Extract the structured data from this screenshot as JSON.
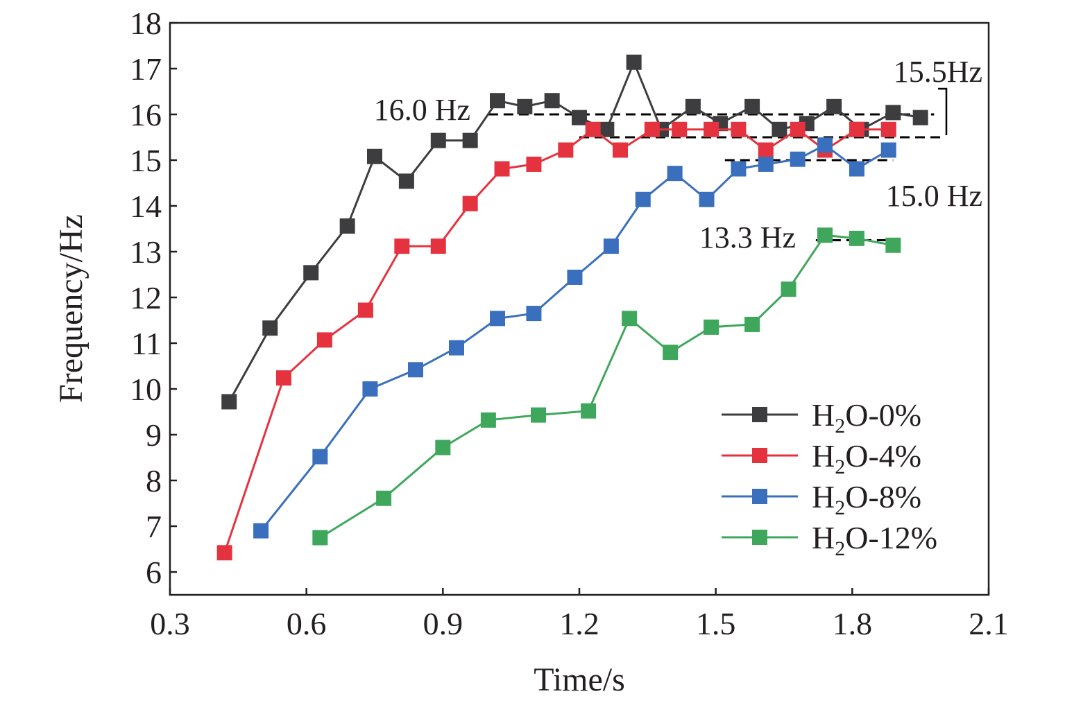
{
  "chart_data": {
    "type": "line",
    "xlabel": "Time/s",
    "ylabel": "Frequency/Hz",
    "xlim": [
      0.3,
      2.1
    ],
    "ylim": [
      5.5,
      18
    ],
    "xticks": [
      "0.3",
      "0.6",
      "0.9",
      "1.2",
      "1.5",
      "1.8",
      "2.1"
    ],
    "yticks": [
      "6",
      "7",
      "8",
      "9",
      "10",
      "11",
      "12",
      "13",
      "14",
      "15",
      "16",
      "17",
      "18"
    ],
    "legend_position": "bottom-right",
    "series": [
      {
        "name": "H2O-0%",
        "label_main": "H",
        "label_sub": "2",
        "label_rest": "O-0%",
        "color": "#3d3d3f",
        "points": [
          [
            0.43,
            9.72
          ],
          [
            0.52,
            11.33
          ],
          [
            0.61,
            12.54
          ],
          [
            0.69,
            13.56
          ],
          [
            0.75,
            15.08
          ],
          [
            0.82,
            14.54
          ],
          [
            0.89,
            15.43
          ],
          [
            0.96,
            15.43
          ],
          [
            1.02,
            16.3
          ],
          [
            1.08,
            16.17
          ],
          [
            1.14,
            16.3
          ],
          [
            1.2,
            15.93
          ],
          [
            1.26,
            15.67
          ],
          [
            1.32,
            17.14
          ],
          [
            1.38,
            15.67
          ],
          [
            1.45,
            16.17
          ],
          [
            1.51,
            15.8
          ],
          [
            1.58,
            16.17
          ],
          [
            1.64,
            15.67
          ],
          [
            1.7,
            15.8
          ],
          [
            1.76,
            16.17
          ],
          [
            1.82,
            15.67
          ],
          [
            1.89,
            16.04
          ],
          [
            1.95,
            15.93
          ]
        ]
      },
      {
        "name": "H2O-4%",
        "label_main": "H",
        "label_sub": "2",
        "label_rest": "O-4%",
        "color": "#e5323f",
        "points": [
          [
            0.42,
            6.42
          ],
          [
            0.55,
            10.24
          ],
          [
            0.64,
            11.07
          ],
          [
            0.73,
            11.72
          ],
          [
            0.81,
            13.12
          ],
          [
            0.89,
            13.12
          ],
          [
            0.96,
            14.05
          ],
          [
            1.03,
            14.81
          ],
          [
            1.1,
            14.91
          ],
          [
            1.17,
            15.22
          ],
          [
            1.23,
            15.67
          ],
          [
            1.29,
            15.22
          ],
          [
            1.36,
            15.67
          ],
          [
            1.42,
            15.67
          ],
          [
            1.49,
            15.67
          ],
          [
            1.55,
            15.67
          ],
          [
            1.61,
            15.22
          ],
          [
            1.68,
            15.67
          ],
          [
            1.74,
            15.22
          ],
          [
            1.81,
            15.67
          ],
          [
            1.88,
            15.67
          ]
        ]
      },
      {
        "name": "H2O-8%",
        "label_main": "H",
        "label_sub": "2",
        "label_rest": "O-8%",
        "color": "#3a6fbe",
        "points": [
          [
            0.5,
            6.9
          ],
          [
            0.63,
            8.52
          ],
          [
            0.74,
            10.0
          ],
          [
            0.84,
            10.42
          ],
          [
            0.93,
            10.9
          ],
          [
            1.02,
            11.54
          ],
          [
            1.1,
            11.65
          ],
          [
            1.19,
            12.44
          ],
          [
            1.27,
            13.12
          ],
          [
            1.34,
            14.14
          ],
          [
            1.41,
            14.71
          ],
          [
            1.48,
            14.14
          ],
          [
            1.55,
            14.81
          ],
          [
            1.61,
            14.91
          ],
          [
            1.68,
            15.02
          ],
          [
            1.74,
            15.33
          ],
          [
            1.81,
            14.81
          ],
          [
            1.88,
            15.22
          ]
        ]
      },
      {
        "name": "H2O-12%",
        "label_main": "H",
        "label_sub": "2",
        "label_rest": "O-12%",
        "color": "#3fa75b",
        "points": [
          [
            0.63,
            6.75
          ],
          [
            0.77,
            7.61
          ],
          [
            0.9,
            8.72
          ],
          [
            1.0,
            9.32
          ],
          [
            1.11,
            9.43
          ],
          [
            1.22,
            9.52
          ],
          [
            1.31,
            11.54
          ],
          [
            1.4,
            10.8
          ],
          [
            1.49,
            11.35
          ],
          [
            1.58,
            11.41
          ],
          [
            1.66,
            12.18
          ],
          [
            1.74,
            13.36
          ],
          [
            1.81,
            13.29
          ],
          [
            1.89,
            13.14
          ]
        ]
      }
    ],
    "annotations": [
      {
        "text": "16.0 Hz",
        "y": 16.0,
        "x_from": 1.0,
        "x_to": 1.98
      },
      {
        "text": "15.5Hz",
        "y": 15.5,
        "x_from": 1.2,
        "x_to": 2.0
      },
      {
        "text": "15.0 Hz",
        "y": 15.0,
        "x_from": 1.52,
        "x_to": 1.89
      },
      {
        "text": "13.3 Hz",
        "y": 13.25,
        "x_from": 1.72,
        "x_to": 1.89
      }
    ]
  }
}
